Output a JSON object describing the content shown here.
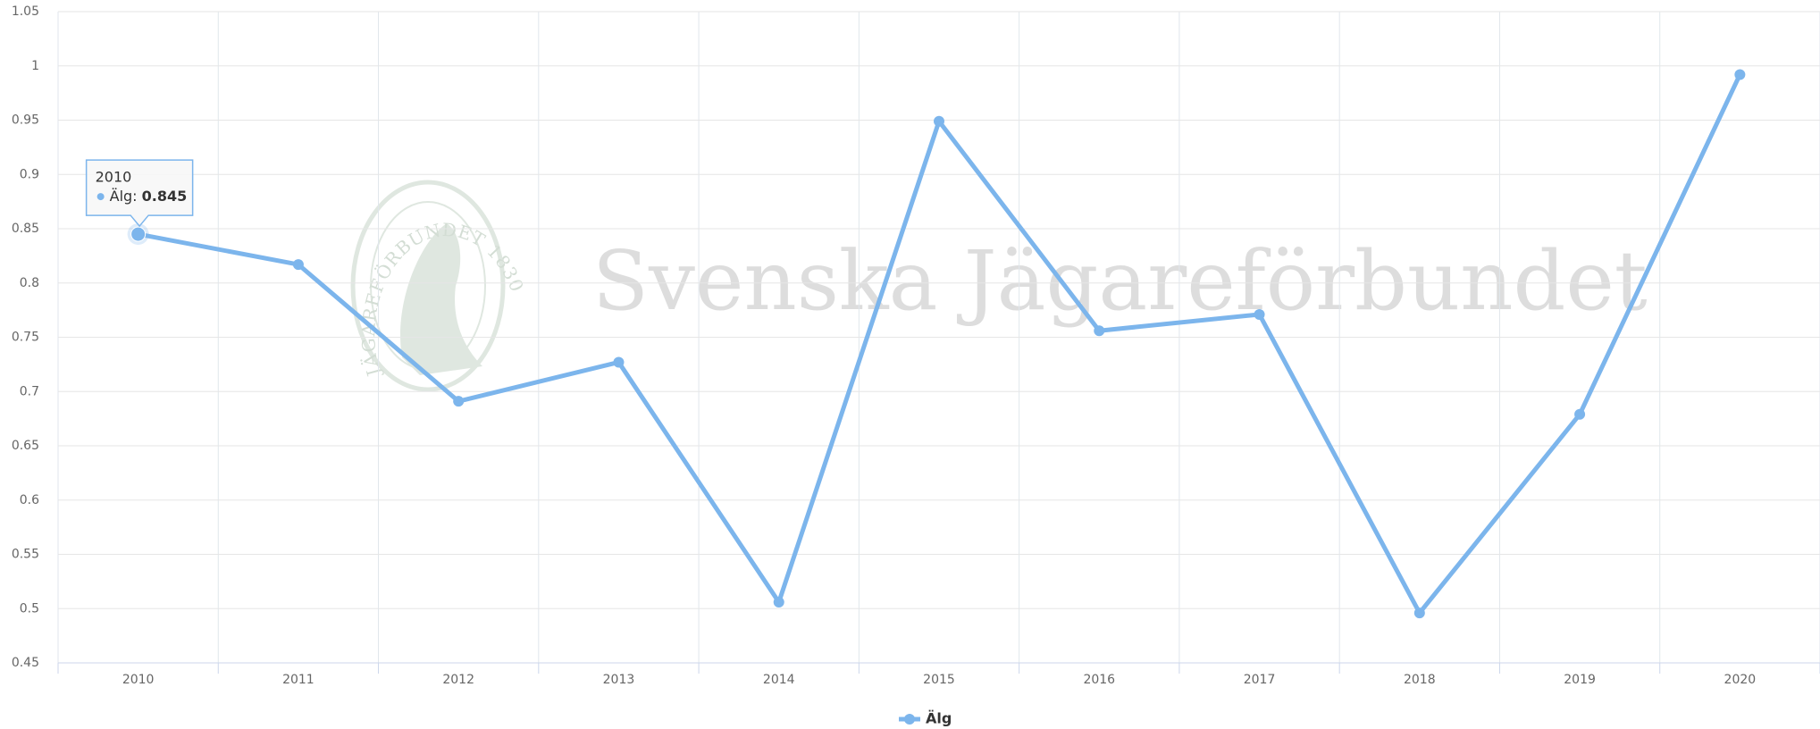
{
  "chart_data": {
    "type": "line",
    "categories": [
      "2010",
      "2011",
      "2012",
      "2013",
      "2014",
      "2015",
      "2016",
      "2017",
      "2018",
      "2019",
      "2020"
    ],
    "series": [
      {
        "name": "Älg",
        "color": "#7cb5ec",
        "values": [
          0.845,
          0.817,
          0.691,
          0.727,
          0.506,
          0.949,
          0.756,
          0.771,
          0.496,
          0.679,
          0.992
        ]
      }
    ],
    "ylim": [
      0.45,
      1.05
    ],
    "yticks": [
      0.45,
      0.5,
      0.55,
      0.6,
      0.65,
      0.7,
      0.75,
      0.8,
      0.85,
      0.9,
      0.95,
      1,
      1.05
    ],
    "grid": true,
    "legend": "bottom",
    "watermark": {
      "text": "Svenska Jägareförbundet",
      "emblem": "JÄGAREFÖRBUNDET 1830"
    }
  }
}
